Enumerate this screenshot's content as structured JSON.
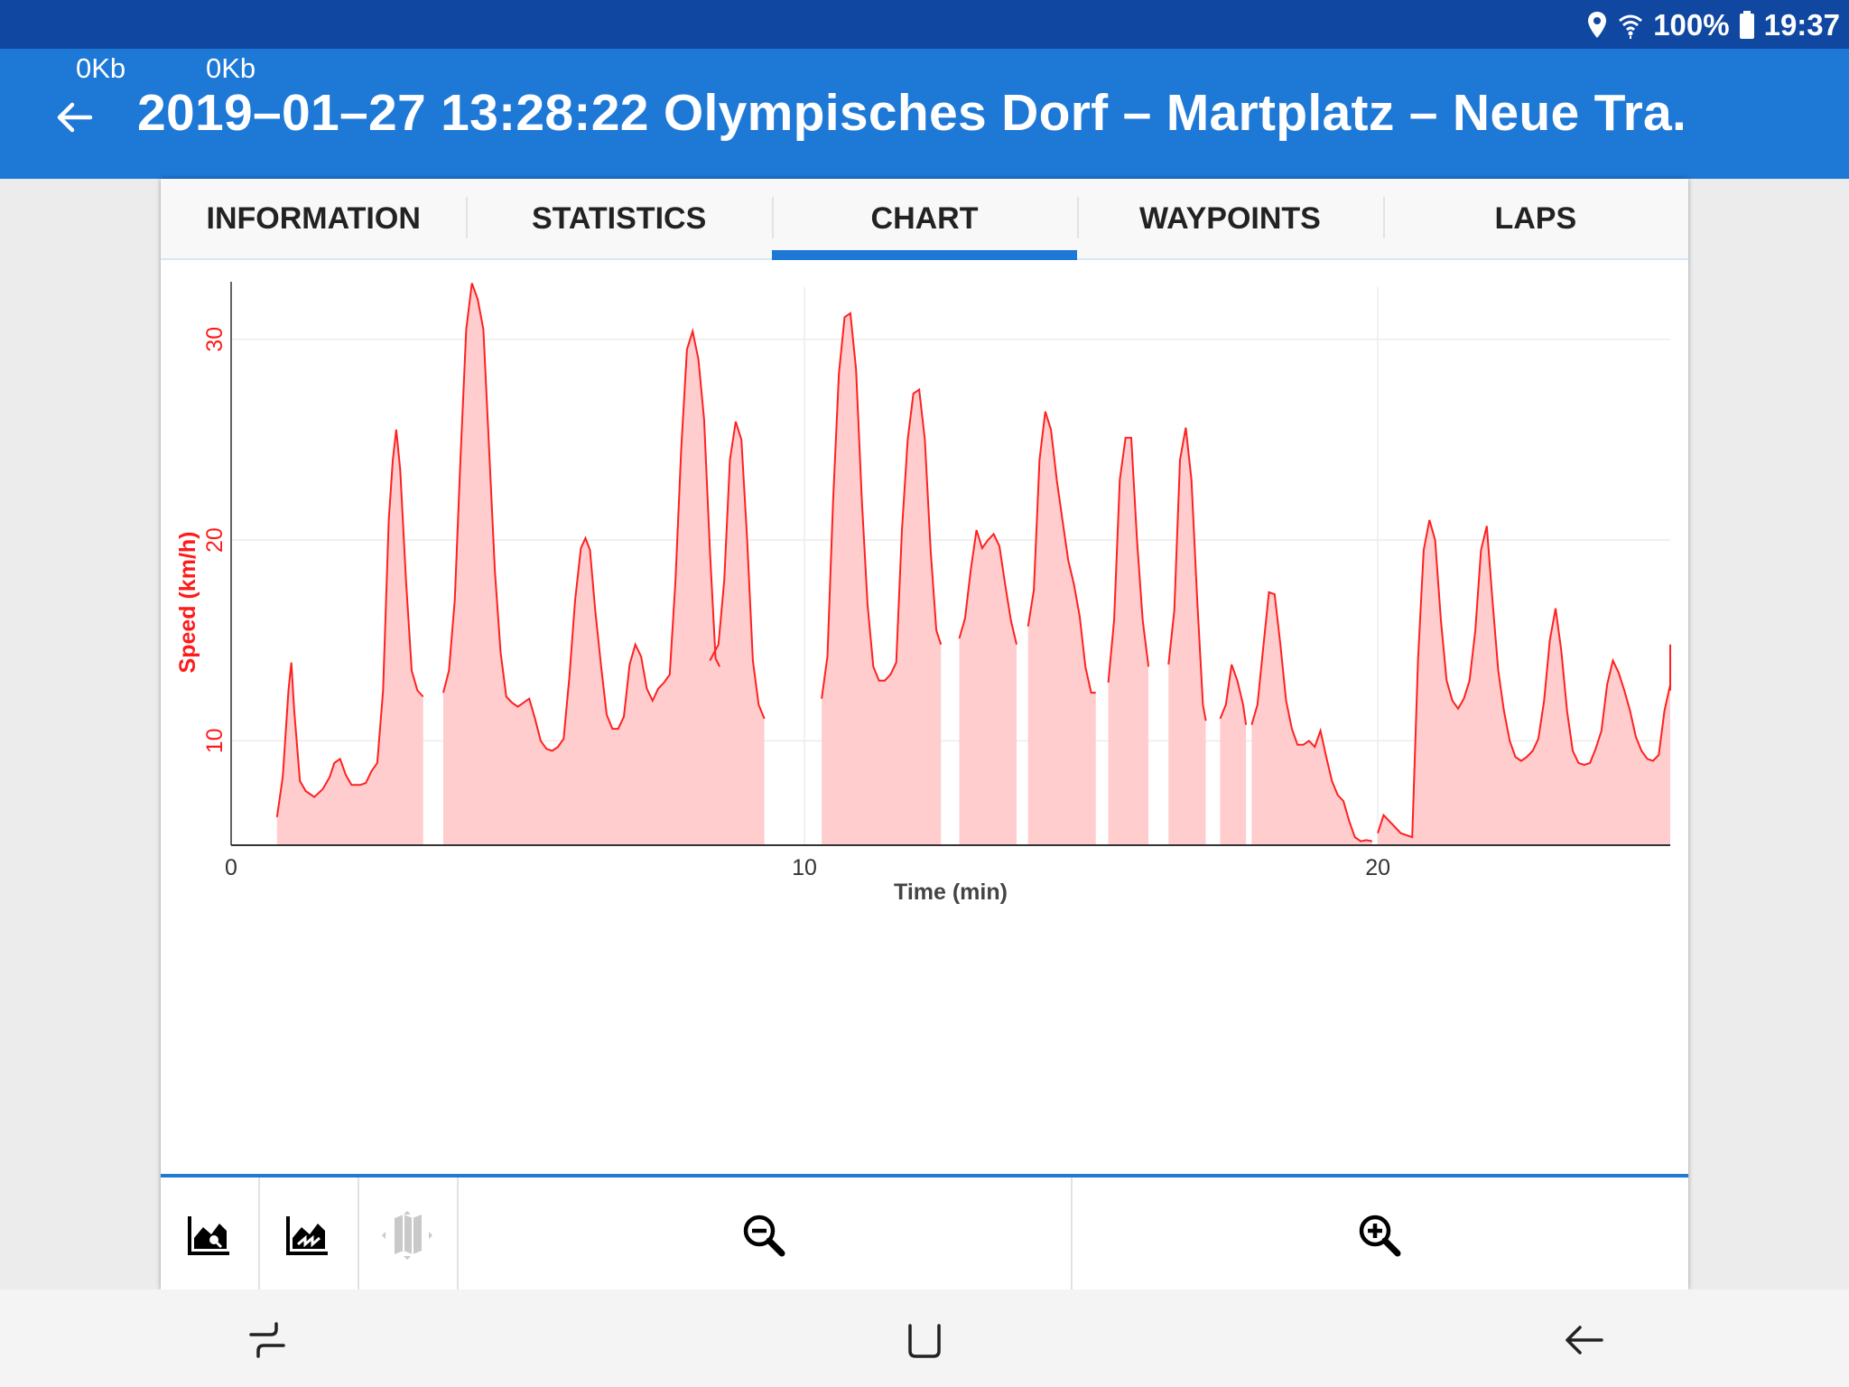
{
  "status_bar": {
    "icons": [
      "location-icon",
      "wifi-icon",
      "battery-icon"
    ],
    "battery": "100%",
    "time": "19:37"
  },
  "app_bar": {
    "upload_rate": "0Kb",
    "download_rate": "0Kb",
    "title": "2019–01–27 13:28:22 Olympisches Dorf – Martplatz – Neue Tra.",
    "color": "#1e78d6"
  },
  "tabs": [
    {
      "label": "INFORMATION"
    },
    {
      "label": "STATISTICS"
    },
    {
      "label": "CHART",
      "active": true
    },
    {
      "label": "WAYPOINTS"
    },
    {
      "label": "LAPS"
    }
  ],
  "chart_data": {
    "type": "area",
    "xlabel": "Time (min)",
    "ylabel": "Speed (km/h)",
    "xlim": [
      0,
      25.1
    ],
    "ylim": [
      4.8,
      32.6
    ],
    "xticks": [
      0,
      10,
      20
    ],
    "yticks": [
      10,
      20,
      30
    ],
    "grid": true,
    "line_color": "#ff2020",
    "fill_color": "#ffcdcd",
    "segments": [
      [
        [
          0.8,
          6.2
        ],
        [
          0.9,
          8.2
        ],
        [
          1.0,
          12.5
        ],
        [
          1.05,
          13.9
        ],
        [
          1.1,
          11.5
        ],
        [
          1.2,
          8.0
        ],
        [
          1.3,
          7.5
        ],
        [
          1.45,
          7.2
        ],
        [
          1.6,
          7.6
        ],
        [
          1.72,
          8.2
        ],
        [
          1.8,
          8.9
        ],
        [
          1.9,
          9.1
        ],
        [
          2.0,
          8.3
        ],
        [
          2.1,
          7.8
        ],
        [
          2.25,
          7.8
        ],
        [
          2.35,
          7.9
        ],
        [
          2.45,
          8.5
        ],
        [
          2.55,
          8.9
        ],
        [
          2.65,
          12.5
        ],
        [
          2.75,
          21.0
        ],
        [
          2.82,
          24.0
        ],
        [
          2.88,
          25.5
        ],
        [
          2.95,
          23.5
        ],
        [
          3.05,
          18.0
        ],
        [
          3.15,
          13.5
        ],
        [
          3.25,
          12.5
        ],
        [
          3.35,
          12.2
        ]
      ],
      [
        [
          3.7,
          12.4
        ],
        [
          3.8,
          13.5
        ],
        [
          3.9,
          17.0
        ],
        [
          4.0,
          24.0
        ],
        [
          4.1,
          30.5
        ],
        [
          4.2,
          32.8
        ],
        [
          4.3,
          32.0
        ],
        [
          4.4,
          30.5
        ],
        [
          4.5,
          24.5
        ],
        [
          4.6,
          18.5
        ],
        [
          4.7,
          14.4
        ],
        [
          4.8,
          12.2
        ],
        [
          4.9,
          11.9
        ],
        [
          5.0,
          11.7
        ],
        [
          5.1,
          11.9
        ],
        [
          5.2,
          12.1
        ],
        [
          5.3,
          11.1
        ],
        [
          5.4,
          10.0
        ],
        [
          5.5,
          9.6
        ],
        [
          5.6,
          9.5
        ],
        [
          5.7,
          9.7
        ],
        [
          5.8,
          10.1
        ],
        [
          5.9,
          13.2
        ],
        [
          6.0,
          17.0
        ],
        [
          6.1,
          19.6
        ],
        [
          6.18,
          20.1
        ],
        [
          6.26,
          19.5
        ],
        [
          6.35,
          16.5
        ],
        [
          6.45,
          13.8
        ],
        [
          6.55,
          11.3
        ],
        [
          6.65,
          10.6
        ],
        [
          6.75,
          10.6
        ],
        [
          6.85,
          11.2
        ],
        [
          6.95,
          13.8
        ],
        [
          7.05,
          14.8
        ],
        [
          7.15,
          14.2
        ],
        [
          7.25,
          12.6
        ],
        [
          7.35,
          12.0
        ],
        [
          7.45,
          12.6
        ],
        [
          7.55,
          12.9
        ],
        [
          7.65,
          13.3
        ],
        [
          7.75,
          18.0
        ],
        [
          7.85,
          24.5
        ],
        [
          7.95,
          29.5
        ],
        [
          8.05,
          30.4
        ],
        [
          8.15,
          29.0
        ],
        [
          8.25,
          26.0
        ],
        [
          8.35,
          19.5
        ],
        [
          8.45,
          14.1
        ],
        [
          8.52,
          13.7
        ]
      ],
      [
        [
          8.35,
          14.0
        ],
        [
          8.5,
          14.8
        ],
        [
          8.6,
          18.0
        ],
        [
          8.7,
          24.0
        ],
        [
          8.8,
          25.9
        ],
        [
          8.9,
          25.0
        ],
        [
          9.0,
          20.0
        ],
        [
          9.1,
          14.0
        ],
        [
          9.2,
          11.8
        ],
        [
          9.3,
          11.1
        ]
      ],
      [
        [
          10.3,
          12.1
        ],
        [
          10.4,
          14.2
        ],
        [
          10.5,
          22.0
        ],
        [
          10.6,
          28.3
        ],
        [
          10.7,
          31.1
        ],
        [
          10.8,
          31.3
        ],
        [
          10.9,
          28.5
        ],
        [
          11.0,
          22.0
        ],
        [
          11.1,
          16.8
        ],
        [
          11.2,
          13.7
        ],
        [
          11.3,
          13.0
        ],
        [
          11.4,
          13.0
        ],
        [
          11.5,
          13.3
        ],
        [
          11.6,
          13.9
        ],
        [
          11.7,
          20.5
        ],
        [
          11.8,
          25.0
        ],
        [
          11.9,
          27.3
        ],
        [
          12.0,
          27.5
        ],
        [
          12.1,
          25.0
        ],
        [
          12.2,
          19.5
        ],
        [
          12.3,
          15.5
        ],
        [
          12.38,
          14.8
        ]
      ],
      [
        [
          12.7,
          15.1
        ],
        [
          12.8,
          16.1
        ],
        [
          12.9,
          18.5
        ],
        [
          13.0,
          20.5
        ],
        [
          13.1,
          19.6
        ],
        [
          13.2,
          20.0
        ],
        [
          13.3,
          20.3
        ],
        [
          13.4,
          19.7
        ],
        [
          13.5,
          17.8
        ],
        [
          13.6,
          16.0
        ],
        [
          13.7,
          14.8
        ]
      ],
      [
        [
          13.9,
          15.7
        ],
        [
          14.0,
          17.5
        ],
        [
          14.1,
          24.0
        ],
        [
          14.2,
          26.4
        ],
        [
          14.3,
          25.5
        ],
        [
          14.4,
          23.0
        ],
        [
          14.5,
          21.0
        ],
        [
          14.6,
          19.0
        ],
        [
          14.7,
          17.8
        ],
        [
          14.8,
          16.2
        ],
        [
          14.9,
          13.7
        ],
        [
          15.0,
          12.4
        ],
        [
          15.08,
          12.4
        ]
      ],
      [
        [
          15.3,
          12.9
        ],
        [
          15.4,
          16.0
        ],
        [
          15.5,
          23.0
        ],
        [
          15.6,
          25.1
        ],
        [
          15.7,
          25.1
        ],
        [
          15.8,
          20.0
        ],
        [
          15.9,
          16.0
        ],
        [
          16.0,
          13.7
        ]
      ],
      [
        [
          16.35,
          13.8
        ],
        [
          16.45,
          16.5
        ],
        [
          16.55,
          24.0
        ],
        [
          16.65,
          25.6
        ],
        [
          16.75,
          23.0
        ],
        [
          16.85,
          17.0
        ],
        [
          16.95,
          11.8
        ],
        [
          17.0,
          11.0
        ]
      ],
      [
        [
          17.25,
          11.1
        ],
        [
          17.35,
          11.8
        ],
        [
          17.45,
          13.8
        ],
        [
          17.55,
          13.0
        ],
        [
          17.65,
          11.8
        ],
        [
          17.7,
          10.8
        ]
      ],
      [
        [
          17.8,
          10.8
        ],
        [
          17.9,
          11.8
        ],
        [
          18.0,
          14.6
        ],
        [
          18.1,
          17.4
        ],
        [
          18.2,
          17.3
        ],
        [
          18.3,
          14.8
        ],
        [
          18.4,
          12.0
        ],
        [
          18.5,
          10.6
        ],
        [
          18.6,
          9.8
        ],
        [
          18.7,
          9.8
        ],
        [
          18.8,
          10.0
        ],
        [
          18.9,
          9.7
        ],
        [
          19.0,
          10.5
        ],
        [
          19.1,
          9.2
        ],
        [
          19.2,
          8.0
        ],
        [
          19.3,
          7.3
        ],
        [
          19.4,
          7.0
        ],
        [
          19.5,
          6.0
        ],
        [
          19.6,
          5.2
        ],
        [
          19.7,
          5.0
        ],
        [
          19.8,
          5.05
        ],
        [
          19.9,
          5.0
        ]
      ],
      [
        [
          20.0,
          5.4
        ],
        [
          20.1,
          6.3
        ],
        [
          20.2,
          6.0
        ],
        [
          20.3,
          5.7
        ],
        [
          20.4,
          5.4
        ],
        [
          20.6,
          5.2
        ],
        [
          20.7,
          14.0
        ],
        [
          20.8,
          19.5
        ],
        [
          20.9,
          21.0
        ],
        [
          21.0,
          20.0
        ],
        [
          21.1,
          16.0
        ],
        [
          21.2,
          13.0
        ],
        [
          21.3,
          12.0
        ],
        [
          21.4,
          11.6
        ],
        [
          21.5,
          12.1
        ],
        [
          21.6,
          13.0
        ],
        [
          21.7,
          15.5
        ],
        [
          21.8,
          19.5
        ],
        [
          21.9,
          20.7
        ],
        [
          22.0,
          17.0
        ],
        [
          22.1,
          13.5
        ],
        [
          22.2,
          11.5
        ],
        [
          22.3,
          10.0
        ],
        [
          22.4,
          9.2
        ],
        [
          22.5,
          9.0
        ],
        [
          22.6,
          9.2
        ],
        [
          22.7,
          9.5
        ],
        [
          22.8,
          10.1
        ],
        [
          22.9,
          12.0
        ],
        [
          23.0,
          15.0
        ],
        [
          23.1,
          16.6
        ],
        [
          23.2,
          14.5
        ],
        [
          23.3,
          11.5
        ],
        [
          23.4,
          9.5
        ],
        [
          23.5,
          8.9
        ],
        [
          23.6,
          8.8
        ],
        [
          23.7,
          8.9
        ],
        [
          23.8,
          9.6
        ],
        [
          23.9,
          10.5
        ],
        [
          24.0,
          12.8
        ],
        [
          24.1,
          14.0
        ],
        [
          24.2,
          13.4
        ],
        [
          24.3,
          12.5
        ],
        [
          24.4,
          11.5
        ],
        [
          24.5,
          10.2
        ],
        [
          24.6,
          9.5
        ],
        [
          24.7,
          9.1
        ],
        [
          24.8,
          9.0
        ],
        [
          24.9,
          9.3
        ],
        [
          25.0,
          11.5
        ],
        [
          25.1,
          12.8
        ],
        [
          25.2,
          13.5
        ],
        [
          25.3,
          14.2
        ],
        [
          25.4,
          14.2
        ],
        [
          25.5,
          14.8
        ],
        [
          25.6,
          13.5
        ],
        [
          25.7,
          12.5
        ]
      ]
    ]
  },
  "toolbar": {
    "buttons": [
      {
        "icon": "elevation-chart-icon",
        "enabled": true
      },
      {
        "icon": "speed-chart-icon",
        "enabled": true
      },
      {
        "icon": "map-icon",
        "enabled": false
      },
      {
        "icon": "zoom-out-icon",
        "enabled": true
      },
      {
        "icon": "zoom-in-icon",
        "enabled": true
      }
    ]
  },
  "nav_bar": {
    "buttons": [
      "recent-apps-icon",
      "home-icon",
      "back-icon"
    ]
  }
}
